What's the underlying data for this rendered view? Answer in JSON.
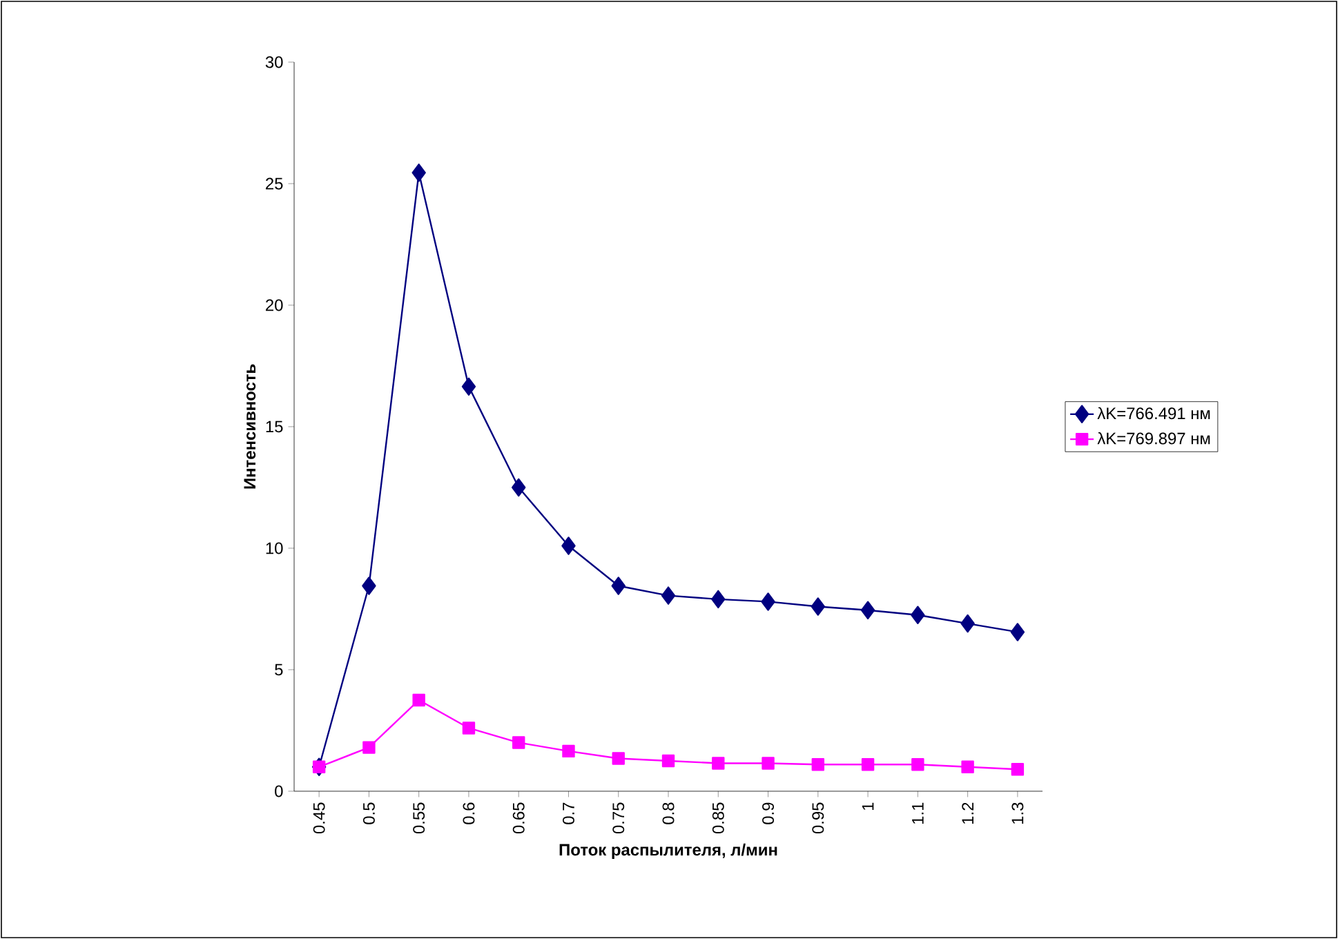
{
  "chart_data": {
    "type": "line",
    "xlabel": "Поток распылителя, л/мин",
    "ylabel": "Интенсивность",
    "categories": [
      "0.45",
      "0.5",
      "0.55",
      "0.6",
      "0.65",
      "0.7",
      "0.75",
      "0.8",
      "0.85",
      "0.9",
      "0.95",
      "1",
      "1.1",
      "1.2",
      "1.3"
    ],
    "series": [
      {
        "name": "λK=766.491 нм",
        "color": "#000080",
        "marker": "diamond",
        "values": [
          1.0,
          8.45,
          25.45,
          16.65,
          12.5,
          10.1,
          8.45,
          8.05,
          7.9,
          7.8,
          7.6,
          7.45,
          7.25,
          6.9,
          6.55
        ]
      },
      {
        "name": "λK=769.897 нм",
        "color": "#ff00ff",
        "marker": "square",
        "values": [
          1.0,
          1.8,
          3.75,
          2.6,
          2.0,
          1.65,
          1.35,
          1.25,
          1.15,
          1.15,
          1.1,
          1.1,
          1.1,
          1.0,
          0.9
        ]
      }
    ],
    "ylim": [
      0,
      30
    ],
    "yticks": [
      0,
      5,
      10,
      15,
      20,
      25,
      30
    ],
    "grid": false,
    "legend": "right"
  }
}
